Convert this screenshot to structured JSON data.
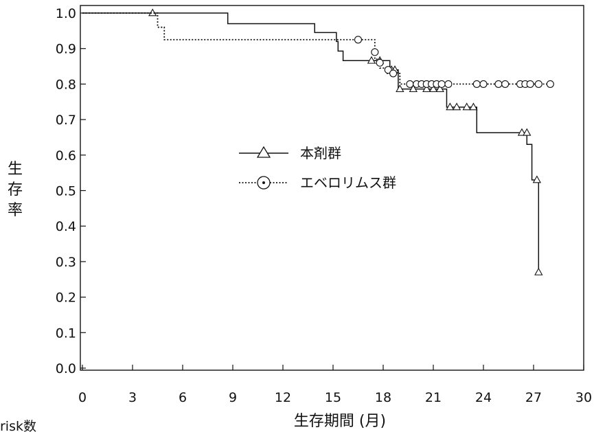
{
  "chart_data": {
    "type": "line",
    "title": "",
    "xlabel": "生存期間 (月)",
    "ylabel": [
      "生",
      "存",
      "率"
    ],
    "xlim": [
      0,
      30
    ],
    "ylim": [
      0.0,
      1.0
    ],
    "xticks": [
      0,
      3,
      6,
      9,
      12,
      15,
      18,
      21,
      24,
      27,
      30
    ],
    "xtick_labels": [
      "0",
      "3",
      "6",
      "9",
      "12",
      "15",
      "18",
      "21",
      "24",
      "27",
      "30"
    ],
    "yticks": [
      0.0,
      0.1,
      0.2,
      0.3,
      0.4,
      0.5,
      0.6,
      0.7,
      0.8,
      0.9,
      1.0
    ],
    "ytick_labels": [
      "0.0",
      "0.1",
      "0.2",
      "0.3",
      "0.4",
      "0.5",
      "0.6",
      "0.7",
      "0.8",
      "0.9",
      "1.0"
    ],
    "grid": false,
    "legend_position": "center",
    "risk_table_label": "risk数",
    "series": [
      {
        "name": "本剤群",
        "line_style": "solid",
        "marker": "triangle",
        "color": "#111111",
        "steps": [
          [
            0,
            1.0
          ],
          [
            8.7,
            0.97
          ],
          [
            13.9,
            0.945
          ],
          [
            15.2,
            0.92
          ],
          [
            15.3,
            0.893
          ],
          [
            15.6,
            0.866
          ],
          [
            18.4,
            0.84
          ],
          [
            18.9,
            0.786
          ],
          [
            21.8,
            0.735
          ],
          [
            23.6,
            0.663
          ],
          [
            26.6,
            0.63
          ],
          [
            26.9,
            0.53
          ],
          [
            27.3,
            0.27
          ]
        ],
        "end_x": 27.3,
        "censored": [
          [
            4.2,
            1.0
          ],
          [
            17.3,
            0.866
          ],
          [
            17.8,
            0.866
          ],
          [
            18.5,
            0.84
          ],
          [
            18.7,
            0.84
          ],
          [
            19.0,
            0.786
          ],
          [
            19.8,
            0.786
          ],
          [
            20.6,
            0.786
          ],
          [
            21.0,
            0.786
          ],
          [
            21.4,
            0.786
          ],
          [
            22.0,
            0.735
          ],
          [
            22.4,
            0.735
          ],
          [
            23.0,
            0.735
          ],
          [
            23.4,
            0.735
          ],
          [
            26.3,
            0.663
          ],
          [
            26.6,
            0.663
          ],
          [
            27.2,
            0.53
          ],
          [
            27.3,
            0.27
          ]
        ]
      },
      {
        "name": "エベロリムス群",
        "line_style": "dotted",
        "marker": "circle",
        "color": "#111111",
        "steps": [
          [
            0,
            1.0
          ],
          [
            4.5,
            0.96
          ],
          [
            4.9,
            0.925
          ],
          [
            17.5,
            0.87
          ],
          [
            17.8,
            0.845
          ],
          [
            18.2,
            0.83
          ],
          [
            19.0,
            0.8
          ]
        ],
        "end_x": 28.0,
        "censored": [
          [
            16.5,
            0.925
          ],
          [
            17.5,
            0.89
          ],
          [
            17.8,
            0.86
          ],
          [
            18.3,
            0.84
          ],
          [
            18.6,
            0.83
          ],
          [
            19.6,
            0.8
          ],
          [
            20.0,
            0.8
          ],
          [
            20.3,
            0.8
          ],
          [
            20.6,
            0.8
          ],
          [
            20.9,
            0.8
          ],
          [
            21.2,
            0.8
          ],
          [
            21.5,
            0.8
          ],
          [
            21.9,
            0.8
          ],
          [
            23.6,
            0.8
          ],
          [
            24.0,
            0.8
          ],
          [
            24.9,
            0.8
          ],
          [
            25.3,
            0.8
          ],
          [
            26.2,
            0.8
          ],
          [
            26.5,
            0.8
          ],
          [
            26.8,
            0.8
          ],
          [
            27.3,
            0.8
          ],
          [
            28.0,
            0.8
          ]
        ]
      }
    ]
  }
}
